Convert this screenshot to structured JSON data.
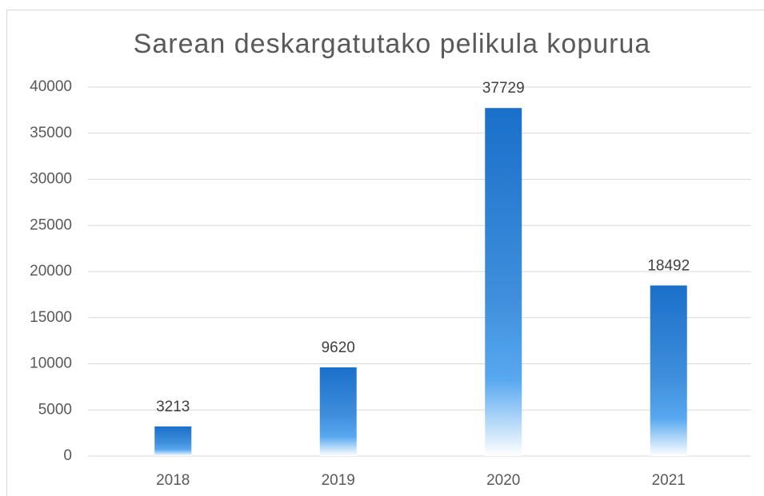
{
  "chart_data": {
    "type": "bar",
    "title": "Sarean deskargatutako pelikula kopurua",
    "categories": [
      "2018",
      "2019",
      "2020",
      "2021"
    ],
    "values": [
      3213,
      9620,
      37729,
      18492
    ],
    "color": "#1a6fc9",
    "ylim": [
      0,
      40000
    ],
    "yticks": [
      0,
      5000,
      10000,
      15000,
      20000,
      25000,
      30000,
      35000,
      40000
    ],
    "grid": true
  }
}
